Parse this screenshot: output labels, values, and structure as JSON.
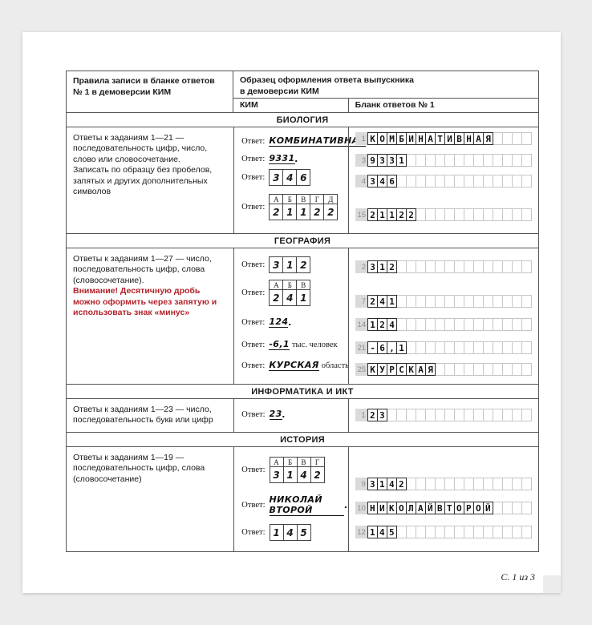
{
  "blank_cell_count": 17,
  "labels": {
    "answer": "Ответ:"
  },
  "footer": "С. 1 из 3",
  "header": {
    "rules_col": "Правила записи в бланке ответов № 1 в демоверсии КИМ",
    "sample_col": "Образец оформления ответа выпускника\nв демоверсии КИМ",
    "kim_col": "КИМ",
    "blank_col": "Бланк ответов № 1"
  },
  "sections": {
    "biology": {
      "title": "БИОЛОГИЯ",
      "rule1": "Ответы к заданиям 1—21 — последовательность цифр, число, слово или словосочетание.",
      "rule2": "Записать по образцу без пробелов, запятых и других дополнительных символов",
      "kim": {
        "a1": {
          "value": "КОМБИНАТИВНАЯ",
          "tail": "."
        },
        "a2": {
          "value": "9331",
          "tail": "."
        },
        "a3": {
          "grid": {
            "values": [
              "3",
              "4",
              "6"
            ]
          }
        },
        "a4": {
          "grid": {
            "headers": [
              "А",
              "Б",
              "В",
              "Г",
              "Д"
            ],
            "values": [
              "2",
              "1",
              "1",
              "2",
              "2"
            ]
          }
        }
      },
      "blank_rows": [
        {
          "num": "1",
          "chars": [
            "К",
            "О",
            "М",
            "Б",
            "И",
            "Н",
            "А",
            "Т",
            "И",
            "В",
            "Н",
            "А",
            "Я"
          ]
        },
        {
          "num": "3",
          "chars": [
            "9",
            "3",
            "3",
            "1"
          ]
        },
        {
          "num": "4",
          "chars": [
            "3",
            "4",
            "6"
          ]
        },
        {
          "num": "15",
          "chars": [
            "2",
            "1",
            "1",
            "2",
            "2"
          ]
        }
      ]
    },
    "geography": {
      "title": "ГЕОГРАФИЯ",
      "rule1": "Ответы к заданиям 1—27 — число, последовательность цифр, слова (словосочетание).",
      "warning": "Внимание! Десятичную дробь можно оформить через запятую и использовать знак «минус»",
      "kim": {
        "g1": {
          "grid": {
            "values": [
              "3",
              "1",
              "2"
            ]
          }
        },
        "g2": {
          "grid": {
            "headers": [
              "А",
              "Б",
              "В"
            ],
            "values": [
              "2",
              "4",
              "1"
            ]
          }
        },
        "g3": {
          "value": "124",
          "tail": "."
        },
        "g4": {
          "value": "-6,1",
          "tail": "тыс. человек"
        },
        "g5": {
          "value": "КУРСКАЯ",
          "tail": "область"
        }
      },
      "blank_rows": [
        {
          "num": "2",
          "chars": [
            "3",
            "1",
            "2"
          ]
        },
        {
          "num": "7",
          "chars": [
            "2",
            "4",
            "1"
          ]
        },
        {
          "num": "14",
          "chars": [
            "1",
            "2",
            "4"
          ]
        },
        {
          "num": "21",
          "chars": [
            "-",
            "6",
            ",",
            "1"
          ]
        },
        {
          "num": "25",
          "chars": [
            "К",
            "У",
            "Р",
            "С",
            "К",
            "А",
            "Я"
          ]
        }
      ]
    },
    "informatics": {
      "title": "ИНФОРМАТИКА И ИКТ",
      "rule1": "Ответы к заданиям 1—23 — число, последовательность букв или цифр",
      "kim": {
        "i1": {
          "value": "23",
          "tail": "."
        }
      },
      "blank_rows": [
        {
          "num": "1",
          "chars": [
            "2",
            "3"
          ]
        }
      ]
    },
    "history": {
      "title": "ИСТОРИЯ",
      "rule1": "Ответы к заданиям 1—19 — последовательность цифр, слова (словосочетание)",
      "kim": {
        "h1": {
          "grid": {
            "headers": [
              "А",
              "Б",
              "В",
              "Г"
            ],
            "values": [
              "3",
              "1",
              "4",
              "2"
            ]
          }
        },
        "h2": {
          "value": "НИКОЛАЙ ВТОРОЙ",
          "tail": "."
        },
        "h3": {
          "grid": {
            "values": [
              "1",
              "4",
              "5"
            ]
          }
        }
      },
      "blank_rows": [
        {
          "num": "9",
          "chars": [
            "3",
            "1",
            "4",
            "2"
          ]
        },
        {
          "num": "10",
          "chars": [
            "Н",
            "И",
            "К",
            "О",
            "Л",
            "А",
            "Й",
            "В",
            "Т",
            "О",
            "Р",
            "О",
            "Й"
          ]
        },
        {
          "num": "12",
          "chars": [
            "1",
            "4",
            "5"
          ]
        }
      ]
    }
  }
}
